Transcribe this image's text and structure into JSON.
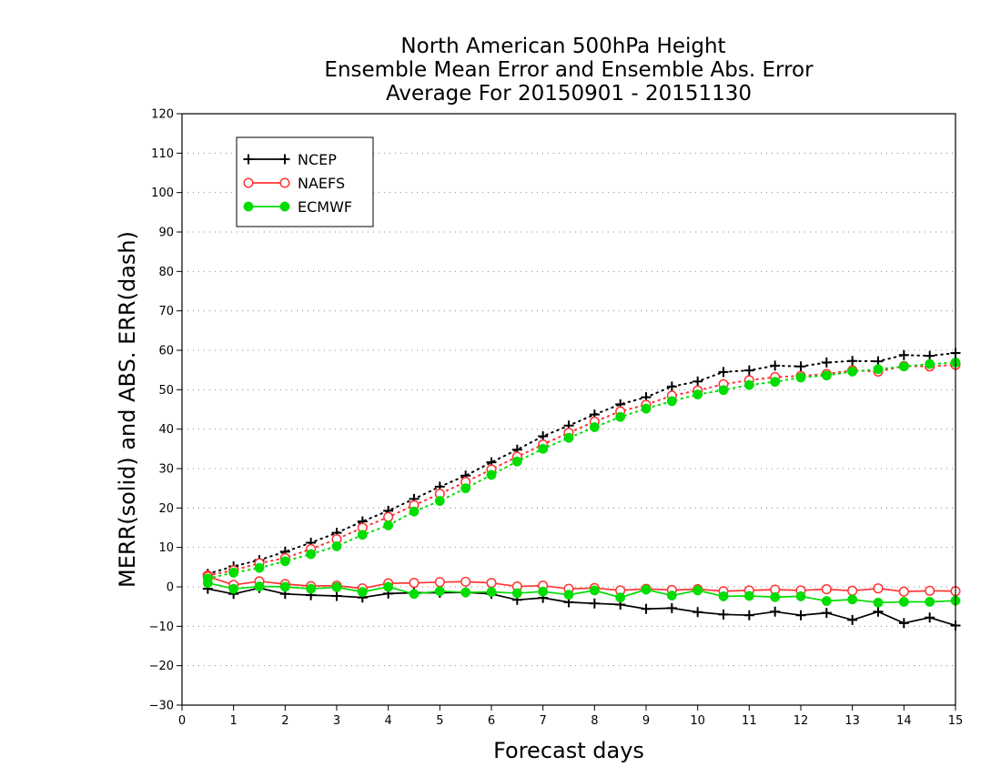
{
  "chart_data": {
    "type": "line",
    "title": [
      "North American 500hPa Height",
      "Ensemble Mean Error and Ensemble Abs. Error",
      "Average For 20150901 - 20151130"
    ],
    "xlabel": "Forecast days",
    "ylabel": "MERR(solid) and ABS. ERR(dash)",
    "xlim": [
      0,
      15
    ],
    "ylim": [
      -30,
      120
    ],
    "xticks": [
      0,
      1,
      2,
      3,
      4,
      5,
      6,
      7,
      8,
      9,
      10,
      11,
      12,
      13,
      14,
      15
    ],
    "yticks": [
      -30,
      -20,
      -10,
      0,
      10,
      20,
      30,
      40,
      50,
      60,
      70,
      80,
      90,
      100,
      110,
      120
    ],
    "grid": "horizontal dotted",
    "legend_position": "top-left",
    "x": [
      0.5,
      1,
      1.5,
      2,
      2.5,
      3,
      3.5,
      4,
      4.5,
      5,
      5.5,
      6,
      6.5,
      7,
      7.5,
      8,
      8.5,
      9,
      9.5,
      10,
      10.5,
      11,
      11.5,
      12,
      12.5,
      13,
      13.5,
      14,
      14.5,
      15
    ],
    "series": [
      {
        "name": "NCEP",
        "color": "#000000",
        "marker": "plus",
        "mean_error": [
          -0.5,
          -1.8,
          -0.3,
          -1.8,
          -2.1,
          -2.3,
          -2.7,
          -1.7,
          -1.5,
          -1.5,
          -1.4,
          -1.8,
          -3.3,
          -2.8,
          -3.9,
          -4.2,
          -4.5,
          -5.6,
          -5.4,
          -6.4,
          -7.0,
          -7.2,
          -6.3,
          -7.2,
          -6.6,
          -8.4,
          -6.3,
          -9.2,
          -7.8,
          -9.8
        ],
        "abs_error": [
          3.3,
          5.2,
          6.8,
          8.9,
          11.2,
          13.7,
          16.6,
          19.3,
          22.3,
          25.4,
          28.2,
          31.6,
          34.8,
          38.2,
          40.9,
          43.7,
          46.3,
          48.1,
          50.8,
          52.1,
          54.5,
          54.9,
          56.1,
          55.9,
          56.9,
          57.3,
          57.2,
          58.8,
          58.6,
          59.3
        ]
      },
      {
        "name": "NAEFS",
        "color": "#ff3333",
        "marker": "open-circle",
        "mean_error": [
          2.6,
          0.5,
          1.4,
          0.7,
          0.2,
          0.3,
          -0.4,
          0.9,
          1.0,
          1.2,
          1.3,
          1.0,
          0.1,
          0.3,
          -0.5,
          -0.3,
          -0.9,
          -0.5,
          -0.8,
          -0.6,
          -1.1,
          -0.9,
          -0.7,
          -0.9,
          -0.6,
          -1.0,
          -0.4,
          -1.2,
          -1.0,
          -1.1
        ],
        "abs_error": [
          2.9,
          4.2,
          6.0,
          7.3,
          9.6,
          12.1,
          15.0,
          17.7,
          20.7,
          23.6,
          26.6,
          29.8,
          33.0,
          36.1,
          39.1,
          41.9,
          44.5,
          46.2,
          48.5,
          49.8,
          51.4,
          52.4,
          53.2,
          53.5,
          54.0,
          54.9,
          54.6,
          56.0,
          55.9,
          56.3
        ]
      },
      {
        "name": "ECMWF",
        "color": "#00dd00",
        "marker": "filled-circle",
        "mean_error": [
          1.0,
          -0.5,
          0.1,
          0.0,
          -0.5,
          -0.1,
          -1.3,
          0.0,
          -1.8,
          -1.1,
          -1.4,
          -1.3,
          -1.6,
          -1.2,
          -2.0,
          -0.9,
          -2.7,
          -0.7,
          -2.2,
          -0.9,
          -2.4,
          -2.3,
          -2.6,
          -2.4,
          -3.6,
          -3.2,
          -4.0,
          -3.8,
          -3.8,
          -3.5
        ],
        "abs_error": [
          2.1,
          3.6,
          4.8,
          6.5,
          8.3,
          10.3,
          13.2,
          15.6,
          19.1,
          21.8,
          25.0,
          28.4,
          31.8,
          35.0,
          37.8,
          40.5,
          43.1,
          45.2,
          47.1,
          48.8,
          49.9,
          51.2,
          52.0,
          53.1,
          53.6,
          54.6,
          55.2,
          55.9,
          56.5,
          56.9
        ]
      }
    ]
  }
}
